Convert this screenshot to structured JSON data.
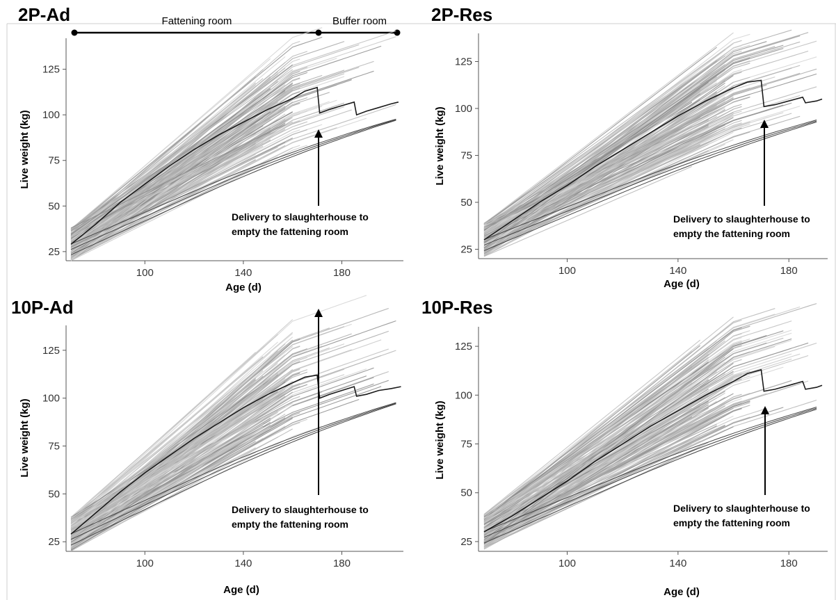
{
  "chart_data": [
    {
      "type": "line",
      "title": "2P-Ad",
      "xlabel": "Age (d)",
      "ylabel": "Live weight (kg)",
      "xticks": [
        100,
        140,
        180
      ],
      "yticks": [
        25,
        50,
        75,
        100,
        125
      ],
      "xlim": [
        68,
        205
      ],
      "ylim": [
        20,
        142
      ],
      "annotation": [
        "Delivery to slaughterhouse to",
        "empty the fattening room"
      ],
      "annotation_x": 171,
      "rooms": [
        {
          "label": "Fattening room",
          "from": 70,
          "to": 171
        },
        {
          "label": "Buffer room",
          "from": 171,
          "to": 203
        }
      ],
      "series": [
        {
          "x": [
            70,
            80,
            90,
            100,
            110,
            120,
            130,
            140,
            150,
            160,
            165,
            170,
            171,
            175,
            180,
            185,
            186,
            190,
            195,
            200,
            203
          ],
          "values": [
            29,
            40,
            52,
            62,
            72,
            81,
            89,
            96,
            103,
            109,
            113,
            115,
            101,
            103,
            105,
            107,
            100,
            102,
            104,
            106,
            107
          ]
        }
      ]
    },
    {
      "type": "line",
      "title": "2P-Res",
      "xlabel": "Age (d)",
      "ylabel": "Live weight (kg)",
      "xticks": [
        100,
        140,
        180
      ],
      "yticks": [
        25,
        50,
        75,
        100,
        125
      ],
      "xlim": [
        68,
        194
      ],
      "ylim": [
        20,
        140
      ],
      "annotation": [
        "Delivery to slaughterhouse to",
        "empty the fattening room"
      ],
      "annotation_x": 171,
      "rooms": [],
      "series": [
        {
          "x": [
            70,
            80,
            90,
            100,
            110,
            120,
            130,
            140,
            150,
            160,
            165,
            170,
            171,
            175,
            180,
            185,
            186,
            190,
            192
          ],
          "values": [
            30,
            40,
            50,
            59,
            69,
            78,
            87,
            96,
            104,
            111,
            114,
            115,
            101,
            102,
            104,
            106,
            103,
            104,
            105
          ]
        }
      ]
    },
    {
      "type": "line",
      "title": "10P-Ad",
      "xlabel": "Age (d)",
      "ylabel": "Live weight (kg)",
      "xticks": [
        100,
        140,
        180
      ],
      "yticks": [
        25,
        50,
        75,
        100,
        125
      ],
      "xlim": [
        68,
        205
      ],
      "ylim": [
        20,
        138
      ],
      "annotation": [
        "Delivery to slaughterhouse to",
        "empty the fattening room"
      ],
      "annotation_x": 171,
      "rooms": [],
      "series": [
        {
          "x": [
            70,
            80,
            90,
            100,
            110,
            120,
            130,
            140,
            150,
            160,
            165,
            170,
            171,
            175,
            180,
            185,
            186,
            190,
            195,
            200,
            204
          ],
          "values": [
            29,
            40,
            51,
            61,
            70,
            79,
            87,
            95,
            102,
            108,
            111,
            112,
            100,
            102,
            104,
            106,
            101,
            102,
            104,
            105,
            106
          ]
        }
      ]
    },
    {
      "type": "line",
      "title": "10P-Res",
      "xlabel": "Age (d)",
      "ylabel": "Live weight (kg)",
      "xticks": [
        100,
        140,
        180
      ],
      "yticks": [
        25,
        50,
        75,
        100,
        125
      ],
      "xlim": [
        68,
        194
      ],
      "ylim": [
        20,
        135
      ],
      "annotation": [
        "Delivery to slaughterhouse to",
        "empty the fattening room"
      ],
      "annotation_x": 171,
      "rooms": [],
      "series": [
        {
          "x": [
            70,
            80,
            90,
            100,
            110,
            120,
            130,
            140,
            150,
            160,
            165,
            170,
            171,
            175,
            180,
            185,
            186,
            190,
            192
          ],
          "values": [
            30,
            38,
            47,
            56,
            66,
            75,
            84,
            92,
            100,
            107,
            111,
            113,
            102,
            103,
            105,
            107,
            103,
            104,
            105
          ]
        }
      ]
    }
  ]
}
